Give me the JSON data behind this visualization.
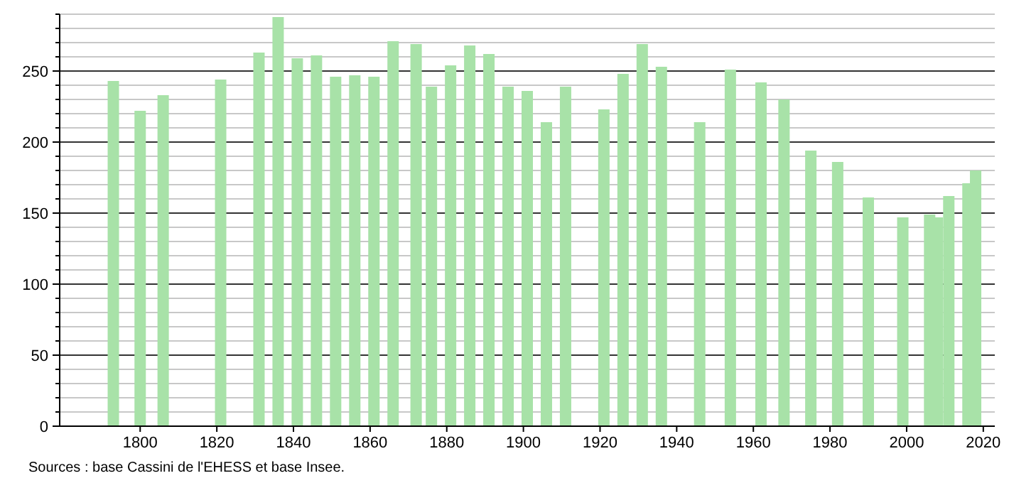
{
  "chart_data": {
    "type": "bar",
    "x": [
      1793,
      1800,
      1806,
      1821,
      1831,
      1836,
      1841,
      1846,
      1851,
      1856,
      1861,
      1866,
      1872,
      1876,
      1881,
      1886,
      1891,
      1896,
      1901,
      1906,
      1911,
      1921,
      1926,
      1931,
      1936,
      1946,
      1954,
      1962,
      1968,
      1975,
      1982,
      1990,
      1999,
      2006,
      2008,
      2011,
      2016,
      2018
    ],
    "values": [
      243,
      222,
      233,
      244,
      263,
      288,
      259,
      261,
      246,
      247,
      246,
      271,
      269,
      239,
      254,
      268,
      262,
      239,
      236,
      214,
      239,
      223,
      248,
      269,
      253,
      214,
      251,
      242,
      230,
      194,
      186,
      161,
      147,
      149,
      147,
      162,
      171,
      180
    ],
    "color": "#a8e2a8",
    "xlim": [
      1779,
      2023
    ],
    "xticks": [
      1800,
      1820,
      1840,
      1860,
      1880,
      1900,
      1920,
      1940,
      1960,
      1980,
      2000,
      2020
    ],
    "ylim": [
      0,
      290
    ],
    "yticks": [
      0,
      {
        "value": 10,
        "label": null
      },
      {
        "value": 20,
        "label": null
      },
      {
        "value": 30,
        "label": null
      },
      {
        "value": 40,
        "label": null
      },
      50,
      {
        "value": 60,
        "label": null
      },
      {
        "value": 70,
        "label": null
      },
      {
        "value": 80,
        "label": null
      },
      {
        "value": 90,
        "label": null
      },
      100,
      {
        "value": 110,
        "label": null
      },
      {
        "value": 120,
        "label": null
      },
      {
        "value": 130,
        "label": null
      },
      {
        "value": 140,
        "label": null
      },
      150,
      {
        "value": 160,
        "label": null
      },
      {
        "value": 170,
        "label": null
      },
      {
        "value": 180,
        "label": null
      },
      {
        "value": 190,
        "label": null
      },
      200,
      {
        "value": 210,
        "label": null
      },
      {
        "value": 220,
        "label": null
      },
      {
        "value": 230,
        "label": null
      },
      {
        "value": 240,
        "label": null
      },
      250,
      {
        "value": 260,
        "label": null
      },
      {
        "value": 270,
        "label": null
      },
      {
        "value": 280,
        "label": null
      },
      {
        "value": 290,
        "label": null
      }
    ],
    "grid": "y",
    "annotations": [
      "Sources : base Cassini de l'EHESS et base Insee."
    ]
  }
}
